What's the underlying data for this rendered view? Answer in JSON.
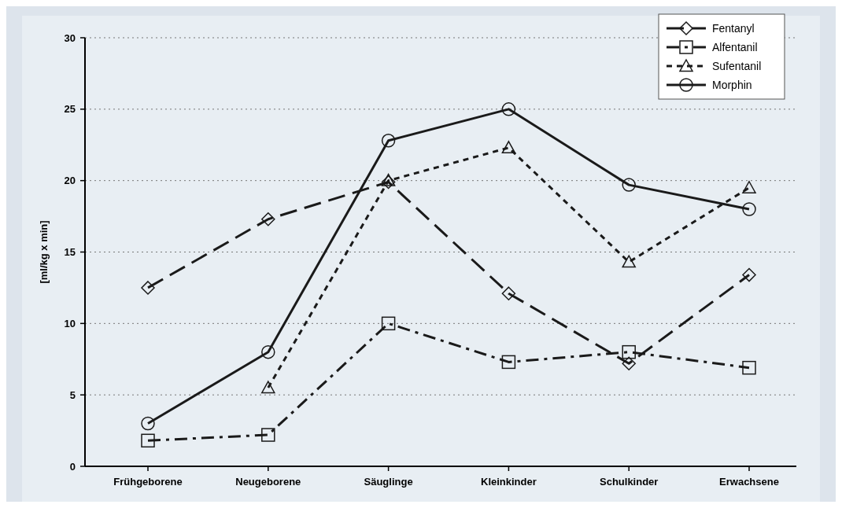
{
  "chart_data": {
    "type": "line",
    "ylabel": "[ml/kg x min]",
    "categories": [
      "Frühgeborene",
      "Neugeborene",
      "Säuglinge",
      "Kleinkinder",
      "Schulkinder",
      "Erwachsene"
    ],
    "ylim": [
      0,
      30
    ],
    "yticks": [
      0,
      5,
      10,
      15,
      20,
      25,
      30
    ],
    "grid": "y",
    "legend": "top right",
    "series": [
      {
        "name": "Fentanyl",
        "color": "#1a1a1a",
        "marker": "diamond",
        "line_style": "dashed",
        "values": [
          12.5,
          17.3,
          19.9,
          12.1,
          7.2,
          13.4
        ]
      },
      {
        "name": "Alfentanil",
        "color": "#1a1a1a",
        "marker": "square",
        "line_style": "dashdot",
        "values": [
          1.8,
          2.2,
          10,
          7.3,
          8,
          6.9
        ]
      },
      {
        "name": "Sufentanil",
        "color": "#1a1a1a",
        "marker": "triangle",
        "line_style": "dotted",
        "values": [
          null,
          5.5,
          20,
          22.3,
          14.3,
          19.5
        ]
      },
      {
        "name": "Morphin",
        "color": "#1a1a1a",
        "marker": "circle",
        "line_style": "solid",
        "values": [
          3,
          8,
          22.8,
          25,
          19.7,
          18
        ]
      }
    ]
  }
}
